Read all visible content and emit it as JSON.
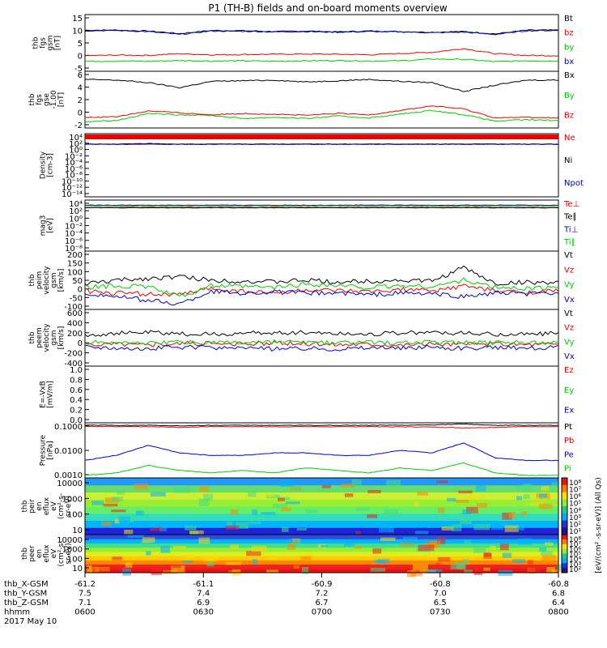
{
  "page": {
    "title": "P1 (TH-B) fields and on-board moments overview"
  },
  "colors": {
    "black": "#000000",
    "red": "#ee0000",
    "green": "#00cc00",
    "blue": "#0000cc"
  },
  "chart_data": [
    {
      "type": "line",
      "id": "fgs_gsm",
      "ylabel_lines": [
        "thb",
        "fgs",
        "gsm",
        "[nT]"
      ],
      "yticks": [
        "15",
        "10",
        "5",
        "0",
        "-5"
      ],
      "ylim": [
        -5,
        15
      ],
      "series": [
        {
          "name": "Bt",
          "color": "black",
          "values": [
            9.5,
            9.5,
            9.2,
            8.3,
            9.4,
            9.3,
            9.0,
            9.2,
            8.9,
            9.2,
            9.0,
            8.8,
            9.0,
            8.2,
            9.5,
            9.5
          ]
        },
        {
          "name": "bz",
          "color": "red",
          "values": [
            0.5,
            0.7,
            0.6,
            1.2,
            0.8,
            0.9,
            1.0,
            1.1,
            1.0,
            0.8,
            1.3,
            1.7,
            3.0,
            1.2,
            0.6,
            0.5
          ]
        },
        {
          "name": "by",
          "color": "green",
          "values": [
            -1.5,
            -1.4,
            -1.5,
            -1.2,
            -1.4,
            -1.3,
            -1.5,
            -1.3,
            -1.2,
            -1.4,
            -1.3,
            -0.7,
            -0.8,
            -1.6,
            -1.3,
            -1.4
          ]
        },
        {
          "name": "bx",
          "color": "blue",
          "values": [
            9.3,
            9.4,
            9.0,
            8.0,
            9.2,
            9.1,
            8.9,
            9.0,
            8.8,
            9.0,
            8.9,
            8.6,
            8.8,
            8.0,
            9.3,
            9.4
          ]
        }
      ]
    },
    {
      "type": "line",
      "id": "fgs_gse",
      "ylabel_lines": [
        "thb",
        "fgs",
        "gse",
        "-1.00",
        "[nT]"
      ],
      "yticks": [
        "6",
        "4",
        "2",
        "0",
        "-2"
      ],
      "ylim": [
        -2.5,
        6.5
      ],
      "series": [
        {
          "name": "Bx",
          "color": "black",
          "values": [
            5.2,
            5.1,
            4.7,
            3.9,
            4.9,
            5.0,
            5.1,
            4.8,
            5.0,
            5.2,
            4.9,
            4.7,
            3.3,
            4.3,
            5.1,
            5.1
          ]
        },
        {
          "name": "By",
          "color": "green",
          "values": [
            -1.5,
            -1.3,
            -0.2,
            -0.4,
            -0.5,
            -1.0,
            -0.8,
            -1.0,
            -0.6,
            -0.9,
            -0.3,
            0.3,
            -0.4,
            -1.4,
            -1.2,
            -1.3
          ]
        },
        {
          "name": "Bz",
          "color": "red",
          "values": [
            -0.8,
            -0.7,
            0.2,
            -0.1,
            -0.4,
            -0.2,
            -0.3,
            -0.5,
            -0.2,
            -0.4,
            0.3,
            1.0,
            0.5,
            -0.9,
            -0.8,
            -0.9
          ]
        }
      ]
    },
    {
      "type": "line",
      "id": "density",
      "scale": "log",
      "ylabel_lines": [
        "Density",
        "[cm-3]"
      ],
      "yticks": [
        "10⁴",
        "10²",
        "10⁰",
        "10⁻²",
        "10⁻⁴",
        "10⁻⁶",
        "10⁻⁸",
        "10⁻¹⁰",
        "10⁻¹²",
        "10⁻¹⁴"
      ],
      "ylim": [
        -14,
        4
      ],
      "series": [
        {
          "name": "Ne",
          "color": "red",
          "values": [
            1.0,
            1.0,
            1.0,
            1.0,
            1.0,
            1.0,
            1.0,
            1.0,
            1.0,
            1.0,
            1.0,
            1.0,
            1.0,
            1.0,
            1.0,
            1.0
          ]
        },
        {
          "name": "Ni",
          "color": "black",
          "values": [
            1.0,
            1.0,
            1.0,
            1.0,
            1.0,
            1.0,
            1.0,
            1.0,
            1.0,
            1.0,
            1.0,
            1.0,
            1.0,
            1.0,
            1.0,
            1.0
          ]
        },
        {
          "name": "Npot",
          "color": "blue",
          "values": [
            1.0,
            1.0,
            1.2,
            1.0,
            1.0,
            1.0,
            1.0,
            1.0,
            1.0,
            1.0,
            1.0,
            1.0,
            1.0,
            1.0,
            1.0,
            1.0
          ]
        }
      ]
    },
    {
      "type": "line",
      "id": "temperature",
      "scale": "log",
      "ylabel_lines": [
        "mag3",
        "[eV]"
      ],
      "yticks": [
        "10⁴",
        "10²",
        "10⁰",
        "10⁻²",
        "10⁻⁴",
        "10⁻⁶",
        "10⁻⁸"
      ],
      "ylim": [
        -9,
        5
      ],
      "series": [
        {
          "name": "Te⊥",
          "color": "red",
          "values": [
            3.0,
            3.0,
            3.0,
            3.0,
            3.0,
            3.0,
            3.0,
            3.0,
            3.0,
            3.0,
            3.0,
            3.0,
            3.0,
            3.0,
            3.0,
            3.0
          ]
        },
        {
          "name": "Te∥",
          "color": "black",
          "values": [
            2.9,
            2.9,
            2.9,
            2.9,
            2.9,
            2.9,
            2.9,
            2.9,
            2.9,
            2.9,
            2.9,
            2.9,
            2.9,
            2.9,
            2.9,
            2.9
          ]
        },
        {
          "name": "Ti⊥",
          "color": "blue",
          "values": [
            3.6,
            3.6,
            3.6,
            3.6,
            3.6,
            3.6,
            3.6,
            3.6,
            3.6,
            3.6,
            3.6,
            3.6,
            3.6,
            3.6,
            3.6,
            3.6
          ]
        },
        {
          "name": "Ti∥",
          "color": "green",
          "values": [
            3.4,
            3.4,
            3.4,
            3.4,
            3.4,
            3.4,
            3.4,
            3.4,
            3.4,
            3.4,
            3.4,
            3.4,
            3.4,
            3.4,
            3.4,
            3.4
          ]
        }
      ]
    },
    {
      "type": "line",
      "id": "ion_velocity",
      "ylabel_lines": [
        "thb",
        "peim",
        "velocity",
        "gsm",
        "[km/s]"
      ],
      "yticks": [
        "200",
        "150",
        "100",
        "50",
        "0",
        "-50",
        "-100"
      ],
      "ylim": [
        -110,
        210
      ],
      "series": [
        {
          "name": "Vt",
          "color": "black",
          "values": [
            30,
            50,
            60,
            70,
            50,
            45,
            40,
            50,
            40,
            45,
            50,
            45,
            120,
            30,
            40,
            35
          ]
        },
        {
          "name": "Vz",
          "color": "red",
          "values": [
            -10,
            -20,
            -25,
            -30,
            5,
            -10,
            -20,
            -5,
            -10,
            -15,
            0,
            -10,
            20,
            -10,
            -15,
            -10
          ]
        },
        {
          "name": "Vy",
          "color": "green",
          "values": [
            10,
            20,
            15,
            -40,
            20,
            15,
            10,
            30,
            20,
            10,
            20,
            15,
            50,
            10,
            5,
            10
          ]
        },
        {
          "name": "Vx",
          "color": "blue",
          "values": [
            -20,
            -40,
            -60,
            -80,
            -10,
            -20,
            -15,
            -20,
            -20,
            -30,
            -20,
            -25,
            -40,
            -20,
            -25,
            -20
          ]
        }
      ]
    },
    {
      "type": "line",
      "id": "electron_velocity",
      "ylabel_lines": [
        "thb",
        "peem",
        "velocity",
        "gsm",
        "[km/s]"
      ],
      "yticks": [
        "600",
        "400",
        "200",
        "0",
        "-200",
        "-400"
      ],
      "ylim": [
        -420,
        620
      ],
      "series": [
        {
          "name": "Vt",
          "color": "black",
          "values": [
            150,
            180,
            200,
            170,
            160,
            180,
            190,
            200,
            180,
            170,
            190,
            200,
            180,
            160,
            170,
            180
          ]
        },
        {
          "name": "Vz",
          "color": "red",
          "values": [
            -20,
            -10,
            -30,
            0,
            -10,
            -20,
            0,
            -10,
            -20,
            -10,
            -30,
            -10,
            -20,
            -10,
            -20,
            -10
          ]
        },
        {
          "name": "Vy",
          "color": "green",
          "values": [
            10,
            20,
            0,
            15,
            10,
            5,
            20,
            10,
            0,
            15,
            10,
            20,
            5,
            10,
            15,
            10
          ]
        },
        {
          "name": "Vx",
          "color": "blue",
          "values": [
            -60,
            -80,
            -100,
            -70,
            -90,
            -80,
            -110,
            -90,
            -100,
            -80,
            -90,
            -70,
            -100,
            -80,
            -90,
            -70
          ]
        }
      ]
    },
    {
      "type": "line",
      "id": "efield",
      "ylabel_lines": [
        "E=-VxB",
        "[mV/m]"
      ],
      "yticks": [
        "1.0",
        "0.8",
        "0.6",
        "0.4",
        "0.2",
        "0.0"
      ],
      "ylim": [
        0,
        1
      ],
      "series": [
        {
          "name": "Ez",
          "color": "red",
          "values": []
        },
        {
          "name": "Ey",
          "color": "green",
          "values": []
        },
        {
          "name": "Ex",
          "color": "blue",
          "values": []
        }
      ]
    },
    {
      "type": "line",
      "id": "pressure",
      "scale": "log",
      "ylabel_lines": [
        "Pressure",
        "[nPa]"
      ],
      "yticks": [
        "0.1000",
        "0.0100",
        "0.0010"
      ],
      "ylim": [
        -3.2,
        -1
      ],
      "series": [
        {
          "name": "Pt",
          "color": "black",
          "values": [
            -1.1,
            -1.1,
            -1.1,
            -1.12,
            -1.1,
            -1.1,
            -1.1,
            -1.1,
            -1.1,
            -1.1,
            -1.1,
            -1.08,
            -1.05,
            -1.1,
            -1.1,
            -1.1
          ]
        },
        {
          "name": "Pb",
          "color": "red",
          "values": [
            -1.15,
            -1.15,
            -1.15,
            -1.18,
            -1.15,
            -1.15,
            -1.16,
            -1.15,
            -1.16,
            -1.15,
            -1.16,
            -1.17,
            -1.2,
            -1.18,
            -1.15,
            -1.15
          ]
        },
        {
          "name": "Pe",
          "color": "blue",
          "values": [
            -2.5,
            -2.3,
            -1.9,
            -2.2,
            -2.3,
            -2.3,
            -2.2,
            -2.2,
            -2.3,
            -2.3,
            -2.1,
            -2.2,
            -1.8,
            -2.4,
            -2.5,
            -2.5
          ]
        },
        {
          "name": "Pi",
          "color": "green",
          "values": [
            -3.1,
            -3.0,
            -2.7,
            -2.9,
            -3.0,
            -2.9,
            -3.0,
            -2.8,
            -2.9,
            -3.0,
            -2.8,
            -2.9,
            -2.6,
            -3.0,
            -3.1,
            -3.1
          ]
        }
      ]
    },
    {
      "type": "heatmap",
      "id": "peir_eflux",
      "ylabel_lines": [
        "thb",
        "peir",
        "en",
        "eflux",
        "eV",
        "(cm²-s-",
        "sr-eV)"
      ],
      "yticks": [
        "10000",
        "1000",
        "100",
        "10"
      ],
      "ylim": [
        1,
        4.2
      ],
      "colorbar_title": "[eV/(cm² -s-sr-eV)] (All Qs)",
      "colorbar_ticks": [
        "10⁸",
        "10⁷",
        "10⁶",
        "10⁵",
        "10⁴",
        "10³",
        "10²",
        "10¹"
      ]
    },
    {
      "type": "heatmap",
      "id": "peer_eflux",
      "ylabel_lines": [
        "thb",
        "peer",
        "en",
        "eflux",
        "eV",
        "(cm²-s-",
        "sr-eV)"
      ],
      "yticks": [
        "10000",
        "1000",
        "100",
        "10"
      ],
      "ylim": [
        0.7,
        4.2
      ],
      "colorbar_title": "[eV/(cm² -s-sr-eV)] (All Qs)",
      "colorbar_ticks": [
        "10⁸",
        "10⁷",
        "10⁶",
        "10⁵",
        "10⁴",
        "10³",
        "10²"
      ]
    }
  ],
  "time_axis": {
    "row_labels": [
      "thb_X-GSM",
      "thb_Y-GSM",
      "thb_Z-GSM",
      "hhmm",
      "2017 May 10"
    ],
    "ticks": [
      {
        "x": "-61.2",
        "y": "7.5",
        "z": "7.1",
        "hhmm": "0600"
      },
      {
        "x": "-61.1",
        "y": "7.4",
        "z": "6.9",
        "hhmm": "0630"
      },
      {
        "x": "-60.9",
        "y": "7.2",
        "z": "6.7",
        "hhmm": "0700"
      },
      {
        "x": "-60.8",
        "y": "7.0",
        "z": "6.5",
        "hhmm": "0730"
      },
      {
        "x": "-60.8",
        "y": "6.8",
        "z": "6.4",
        "hhmm": "0800"
      }
    ]
  }
}
